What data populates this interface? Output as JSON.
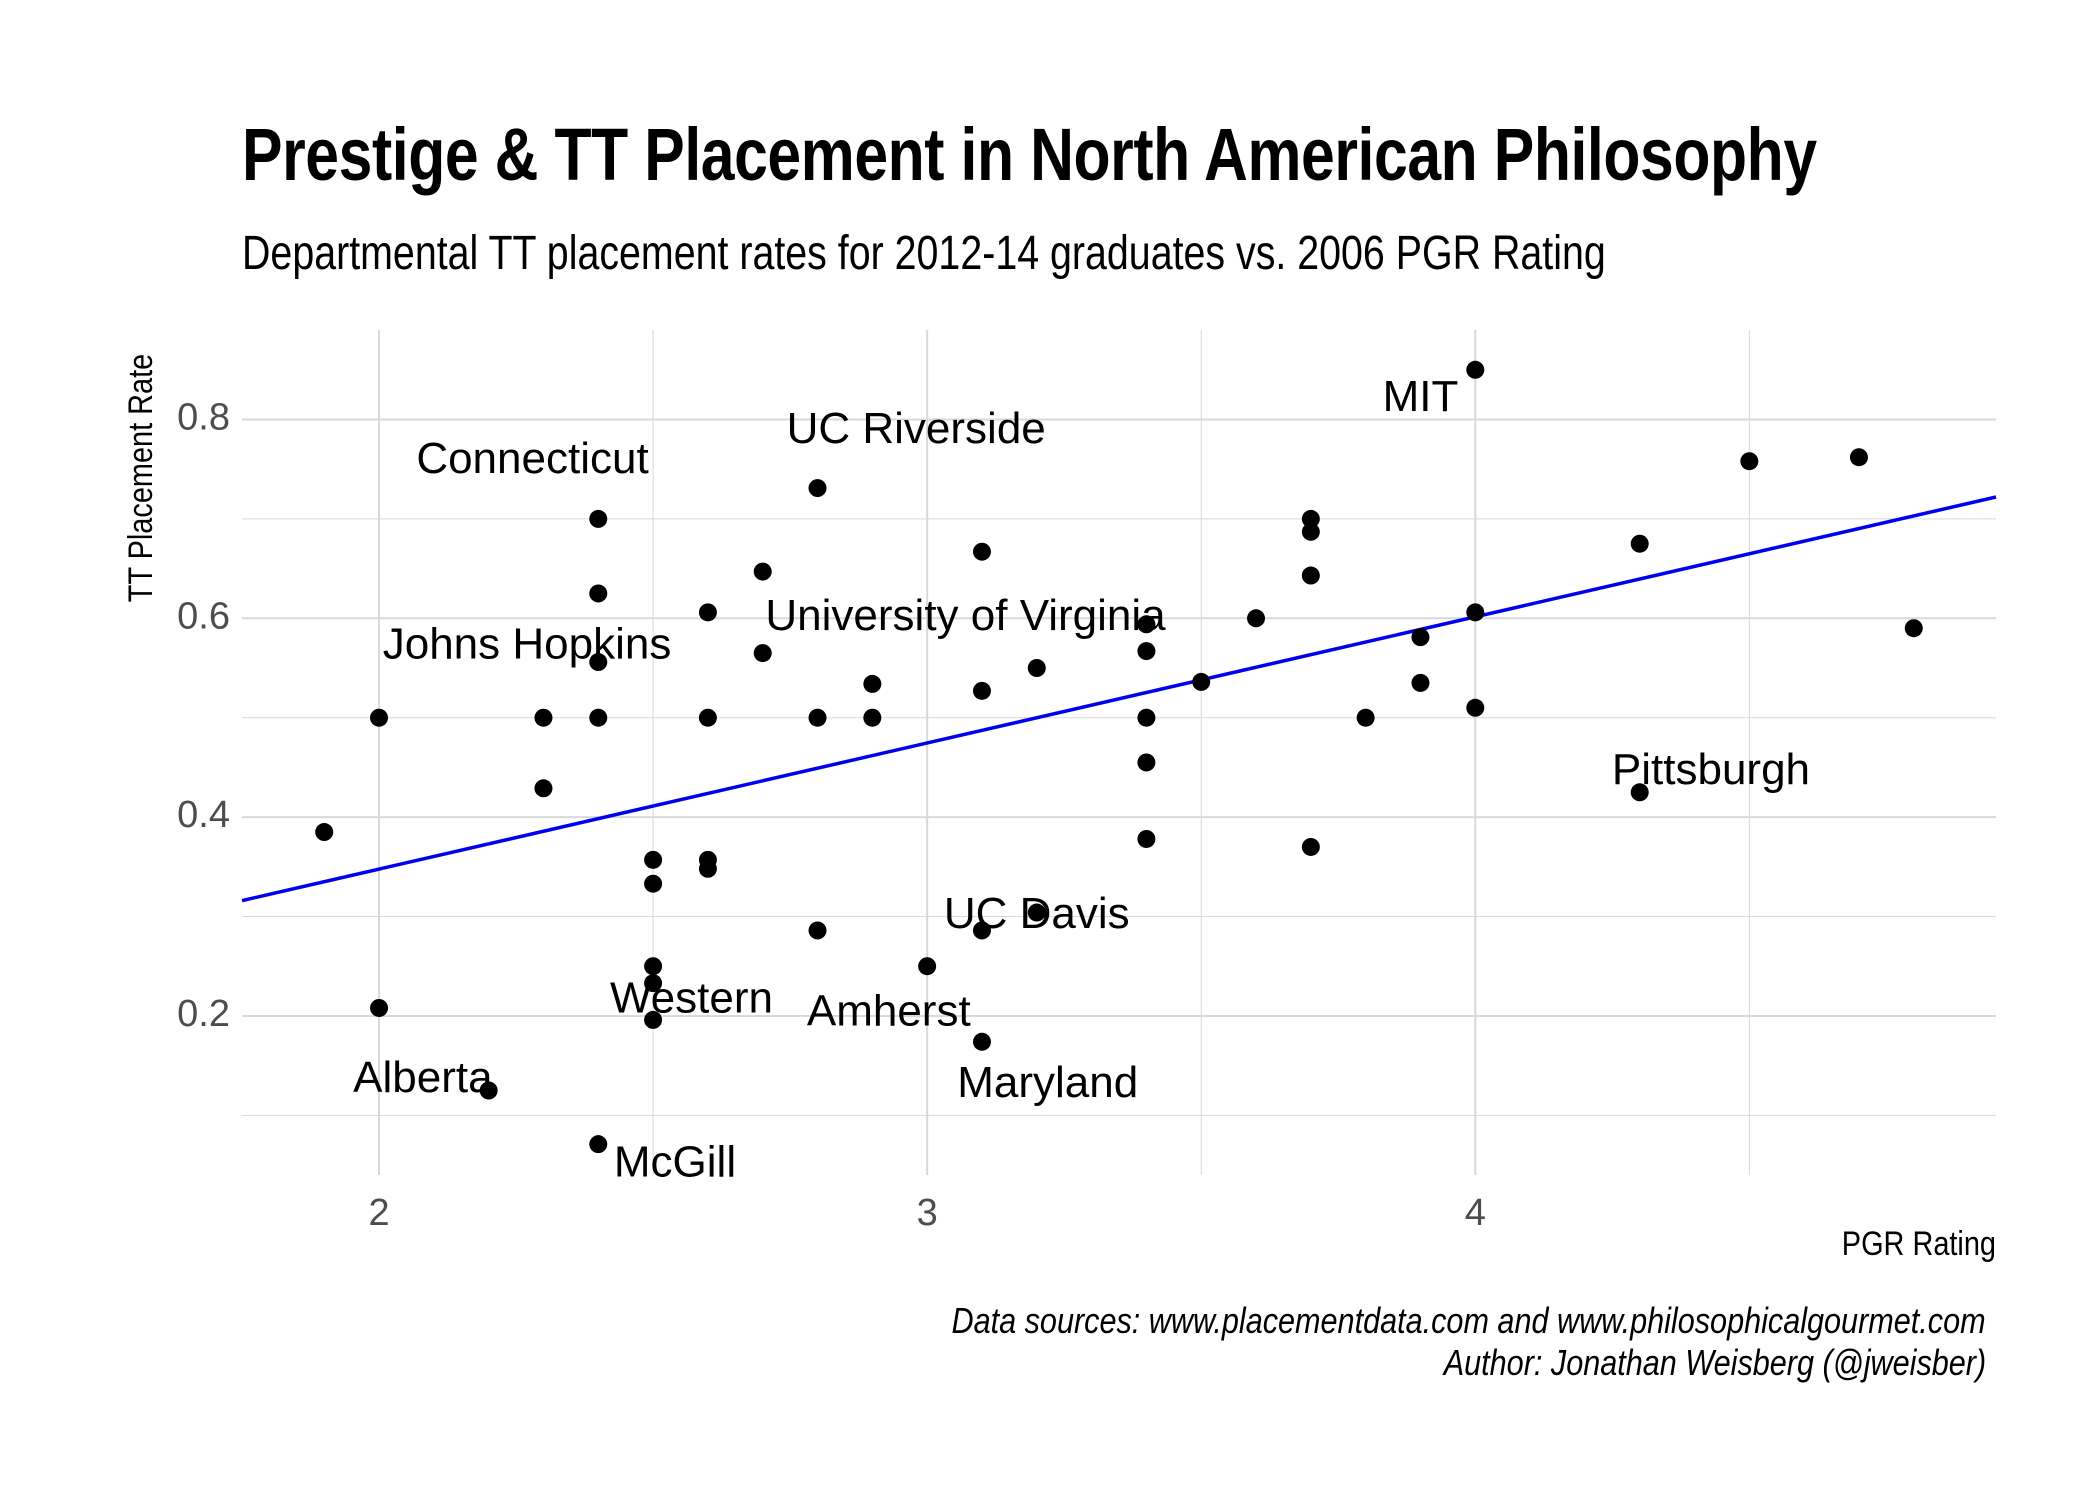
{
  "chart_data": {
    "type": "scatter",
    "title": "Prestige & TT Placement in North American Philosophy",
    "subtitle": "Departmental TT placement rates for 2012-14 graduates vs. 2006 PGR Rating",
    "xlabel": "PGR Rating",
    "ylabel": "TT Placement Rate",
    "xlim": [
      1.75,
      4.95
    ],
    "ylim": [
      0.04,
      0.89
    ],
    "x_ticks": [
      2,
      3,
      4
    ],
    "y_ticks": [
      0.2,
      0.4,
      0.6,
      0.8
    ],
    "grid": true,
    "points": [
      {
        "x": 1.9,
        "y": 0.385
      },
      {
        "x": 2.0,
        "y": 0.5
      },
      {
        "x": 2.0,
        "y": 0.208
      },
      {
        "x": 2.2,
        "y": 0.125
      },
      {
        "x": 2.3,
        "y": 0.5
      },
      {
        "x": 2.3,
        "y": 0.429
      },
      {
        "x": 2.4,
        "y": 0.7
      },
      {
        "x": 2.4,
        "y": 0.625
      },
      {
        "x": 2.4,
        "y": 0.556
      },
      {
        "x": 2.4,
        "y": 0.5
      },
      {
        "x": 2.4,
        "y": 0.071
      },
      {
        "x": 2.5,
        "y": 0.357
      },
      {
        "x": 2.5,
        "y": 0.333
      },
      {
        "x": 2.5,
        "y": 0.25
      },
      {
        "x": 2.5,
        "y": 0.233
      },
      {
        "x": 2.5,
        "y": 0.196
      },
      {
        "x": 2.6,
        "y": 0.606
      },
      {
        "x": 2.6,
        "y": 0.5
      },
      {
        "x": 2.6,
        "y": 0.357
      },
      {
        "x": 2.6,
        "y": 0.348
      },
      {
        "x": 2.7,
        "y": 0.647
      },
      {
        "x": 2.7,
        "y": 0.565
      },
      {
        "x": 2.8,
        "y": 0.731
      },
      {
        "x": 2.8,
        "y": 0.5
      },
      {
        "x": 2.8,
        "y": 0.286
      },
      {
        "x": 2.9,
        "y": 0.534
      },
      {
        "x": 2.9,
        "y": 0.5
      },
      {
        "x": 3.0,
        "y": 0.25
      },
      {
        "x": 3.1,
        "y": 0.667
      },
      {
        "x": 3.1,
        "y": 0.527
      },
      {
        "x": 3.1,
        "y": 0.286
      },
      {
        "x": 3.1,
        "y": 0.174
      },
      {
        "x": 3.2,
        "y": 0.55
      },
      {
        "x": 3.2,
        "y": 0.304
      },
      {
        "x": 3.4,
        "y": 0.594
      },
      {
        "x": 3.4,
        "y": 0.567
      },
      {
        "x": 3.4,
        "y": 0.5
      },
      {
        "x": 3.4,
        "y": 0.455
      },
      {
        "x": 3.4,
        "y": 0.378
      },
      {
        "x": 3.5,
        "y": 0.536
      },
      {
        "x": 3.6,
        "y": 0.6
      },
      {
        "x": 3.7,
        "y": 0.7
      },
      {
        "x": 3.7,
        "y": 0.687
      },
      {
        "x": 3.7,
        "y": 0.643
      },
      {
        "x": 3.7,
        "y": 0.37
      },
      {
        "x": 3.8,
        "y": 0.5
      },
      {
        "x": 3.9,
        "y": 0.581
      },
      {
        "x": 3.9,
        "y": 0.535
      },
      {
        "x": 4.0,
        "y": 0.85
      },
      {
        "x": 4.0,
        "y": 0.606
      },
      {
        "x": 4.0,
        "y": 0.51
      },
      {
        "x": 4.3,
        "y": 0.675
      },
      {
        "x": 4.3,
        "y": 0.425
      },
      {
        "x": 4.5,
        "y": 0.758
      },
      {
        "x": 4.7,
        "y": 0.762
      },
      {
        "x": 4.8,
        "y": 0.59
      }
    ],
    "fit_line": {
      "color": "#0000ee",
      "x": [
        1.75,
        4.95
      ],
      "y": [
        0.316,
        0.722
      ]
    },
    "annotations": [
      {
        "text": "MIT",
        "x": 3.9,
        "y": 0.82
      },
      {
        "text": "UC Riverside",
        "x": 2.98,
        "y": 0.788
      },
      {
        "text": "Connecticut",
        "x": 2.28,
        "y": 0.758
      },
      {
        "text": "University of Virginia",
        "x": 3.07,
        "y": 0.6
      },
      {
        "text": "Johns Hopkins",
        "x": 2.27,
        "y": 0.571
      },
      {
        "text": "Pittsburgh",
        "x": 4.43,
        "y": 0.445
      },
      {
        "text": "UC Davis",
        "x": 3.2,
        "y": 0.3
      },
      {
        "text": "Western",
        "x": 2.57,
        "y": 0.215
      },
      {
        "text": "Amherst",
        "x": 2.93,
        "y": 0.202
      },
      {
        "text": "Alberta",
        "x": 2.08,
        "y": 0.135
      },
      {
        "text": "Maryland",
        "x": 3.22,
        "y": 0.13
      },
      {
        "text": "McGill",
        "x": 2.54,
        "y": 0.05
      }
    ]
  },
  "caption": {
    "line1": "Data sources: www.placementdata.com and www.philosophicalgourmet.com",
    "line2": "Author: Jonathan Weisberg (@jweisber)"
  }
}
